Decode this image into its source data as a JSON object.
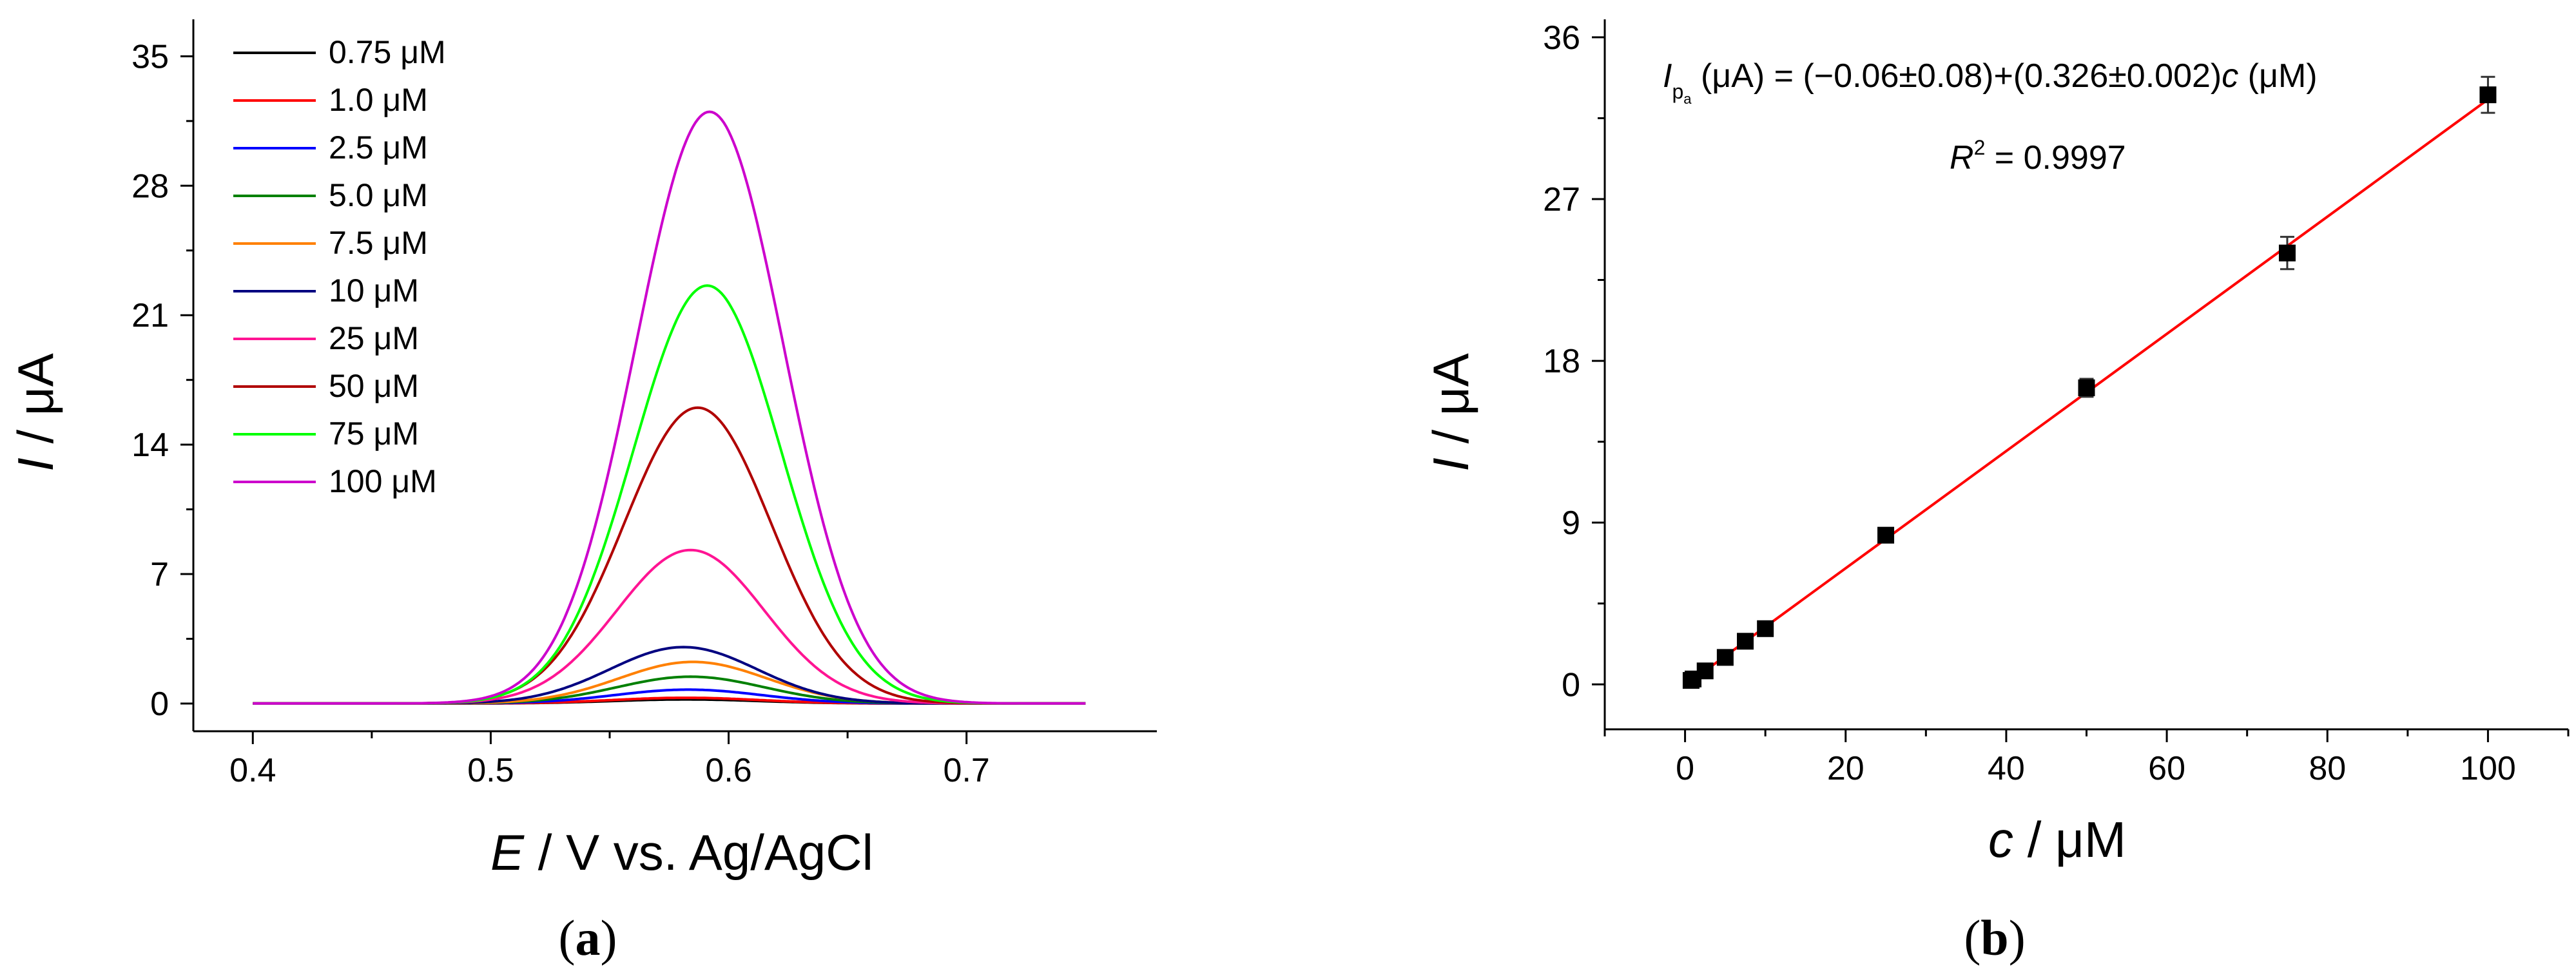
{
  "panels": {
    "a": {
      "label_open": "(",
      "label_letter": "a",
      "label_close": ")"
    },
    "b": {
      "label_open": "(",
      "label_letter": "b",
      "label_close": ")"
    }
  },
  "chart_data": [
    {
      "type": "line",
      "panel": "a",
      "title": "",
      "xlabel_italic": "E",
      "xlabel_rest": " / V vs. Ag/AgCl",
      "ylabel_italic": "I",
      "ylabel_rest": " / μA",
      "xlim": [
        0.375,
        0.78
      ],
      "ylim": [
        -1.5,
        37
      ],
      "xticks": [
        0.4,
        0.5,
        0.6,
        0.7
      ],
      "xtick_labels": [
        "0.4",
        "0.5",
        "0.6",
        "0.7"
      ],
      "yticks": [
        0,
        7,
        14,
        21,
        28,
        35
      ],
      "ytick_labels": [
        "0",
        "7",
        "14",
        "21",
        "28",
        "35"
      ],
      "x_range": [
        0.4,
        0.75
      ],
      "legend_position": "top-left",
      "series": [
        {
          "name": "0.75 μM",
          "color": "#000000",
          "peak": 0.22,
          "center": 0.582,
          "width": 0.031
        },
        {
          "name": "1.0 μM",
          "color": "#ff0000",
          "peak": 0.31,
          "center": 0.582,
          "width": 0.031
        },
        {
          "name": "2.5 μM",
          "color": "#0000ff",
          "peak": 0.75,
          "center": 0.583,
          "width": 0.031
        },
        {
          "name": "5.0 μM",
          "color": "#008000",
          "peak": 1.45,
          "center": 0.584,
          "width": 0.031
        },
        {
          "name": "7.5 μM",
          "color": "#ff8000",
          "peak": 2.25,
          "center": 0.585,
          "width": 0.031
        },
        {
          "name": "10 μM",
          "color": "#000080",
          "peak": 3.05,
          "center": 0.581,
          "width": 0.031
        },
        {
          "name": "25 μM",
          "color": "#ff1493",
          "peak": 8.3,
          "center": 0.584,
          "width": 0.031
        },
        {
          "name": "50 μM",
          "color": "#b00000",
          "peak": 16.0,
          "center": 0.587,
          "width": 0.031
        },
        {
          "name": "75 μM",
          "color": "#00ff00",
          "peak": 22.6,
          "center": 0.591,
          "width": 0.031
        },
        {
          "name": "100 μM",
          "color": "#cc00cc",
          "peak": 32.0,
          "center": 0.592,
          "width": 0.031
        }
      ]
    },
    {
      "type": "scatter",
      "panel": "b",
      "title": "",
      "xlabel_italic": "c",
      "xlabel_rest": " / μM",
      "ylabel_italic": "I",
      "ylabel_rest": " / μA",
      "xlim": [
        -10,
        110
      ],
      "ylim": [
        -2.5,
        37
      ],
      "xticks": [
        0,
        20,
        40,
        60,
        80,
        100
      ],
      "xtick_labels": [
        "0",
        "20",
        "40",
        "60",
        "80",
        "100"
      ],
      "yticks": [
        0,
        9,
        18,
        27,
        36
      ],
      "ytick_labels": [
        "0",
        "9",
        "18",
        "27",
        "36"
      ],
      "points": [
        {
          "x": 0.75,
          "y": 0.22,
          "err": 0.2
        },
        {
          "x": 1.0,
          "y": 0.3,
          "err": 0.2
        },
        {
          "x": 2.5,
          "y": 0.75,
          "err": 0.2
        },
        {
          "x": 5.0,
          "y": 1.5,
          "err": 0.3
        },
        {
          "x": 7.5,
          "y": 2.4,
          "err": 0.3
        },
        {
          "x": 10,
          "y": 3.1,
          "err": 0.3
        },
        {
          "x": 25,
          "y": 8.3,
          "err": 0.4
        },
        {
          "x": 50,
          "y": 16.5,
          "err": 0.5
        },
        {
          "x": 75,
          "y": 24.0,
          "err": 0.9
        },
        {
          "x": 100,
          "y": 32.8,
          "err": 1.0
        }
      ],
      "fit": {
        "intercept": -0.06,
        "slope": 0.326,
        "x_from": 0.75,
        "x_to": 100,
        "color": "#ff0000"
      },
      "equation": {
        "I": "I",
        "sub1": "p",
        "sub2": "a",
        "lhs_unit": " (μA) = (−0.06±0.08)+(0.326±0.002)",
        "c": "c",
        "rhs_unit": " (μM)",
        "R": "R",
        "sup": "2",
        "r2_value": " = 0.9997"
      }
    }
  ]
}
